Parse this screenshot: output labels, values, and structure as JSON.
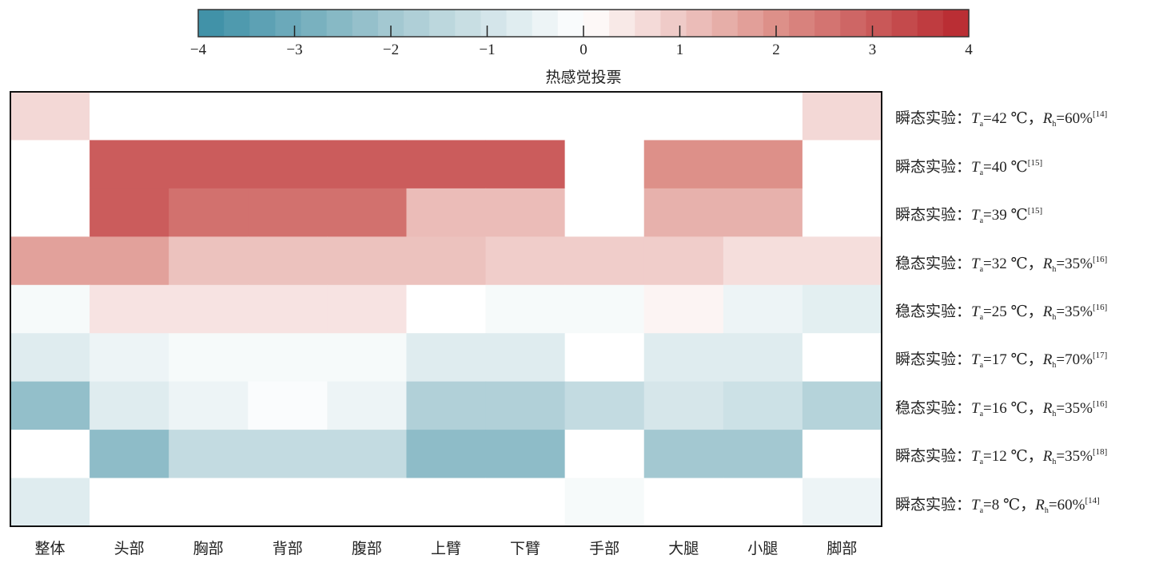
{
  "chart_data": {
    "type": "heatmap",
    "colorbar": {
      "title": "热感觉投票",
      "range": [
        -4,
        4
      ],
      "ticks": [
        -4,
        -3,
        -2,
        -1,
        0,
        1,
        2,
        3,
        4
      ],
      "tick_labels": [
        "−4",
        "−3",
        "−2",
        "−1",
        "0",
        "1",
        "2",
        "3",
        "4"
      ],
      "steps": 30,
      "colors": {
        "neg": "#3a8ea5",
        "neg_mid": "#a3c8d1",
        "zero": "#ffffff",
        "pos_mid": "#dd9089",
        "pos": "#b8272e"
      }
    },
    "columns": [
      "整体",
      "头部",
      "胸部",
      "背部",
      "腹部",
      "上臂",
      "下臂",
      "手部",
      "大腿",
      "小腿",
      "脚部"
    ],
    "rows": [
      {
        "prefix": "瞬态实验：",
        "t": "=42 ℃",
        "rh": "=60%",
        "ref": "[14]"
      },
      {
        "prefix": "瞬态实验：",
        "t": "=40 ℃",
        "rh": null,
        "ref": "[15]"
      },
      {
        "prefix": "瞬态实验：",
        "t": "=39 ℃",
        "rh": null,
        "ref": "[15]"
      },
      {
        "prefix": "稳态实验：",
        "t": "=32 ℃",
        "rh": "=35%",
        "ref": "[16]"
      },
      {
        "prefix": "稳态实验：",
        "t": "=25 ℃",
        "rh": "=35%",
        "ref": "[16]"
      },
      {
        "prefix": "瞬态实验：",
        "t": "=17 ℃",
        "rh": "=70%",
        "ref": "[17]"
      },
      {
        "prefix": "稳态实验：",
        "t": "=16 ℃",
        "rh": "=35%",
        "ref": "[16]"
      },
      {
        "prefix": "瞬态实验：",
        "t": "=12 ℃",
        "rh": "=35%",
        "ref": "[18]"
      },
      {
        "prefix": "瞬态实验：",
        "t": "=8 ℃",
        "rh": "=60%",
        "ref": "[14]"
      }
    ],
    "symbols": {
      "t": "T",
      "t_sub": "a",
      "rh": "R",
      "rh_sub": "h",
      "sep": "，"
    },
    "values": [
      [
        0.7,
        0,
        0,
        0,
        0,
        0,
        0,
        0,
        0,
        0,
        0.7
      ],
      [
        0,
        3.0,
        3.0,
        3.0,
        3.0,
        3.0,
        3.0,
        0,
        2.0,
        2.0,
        0
      ],
      [
        0,
        3.0,
        2.6,
        2.6,
        2.6,
        1.2,
        1.2,
        0,
        1.4,
        1.4,
        0
      ],
      [
        1.7,
        1.7,
        1.1,
        1.1,
        1.1,
        1.1,
        0.9,
        0.9,
        0.9,
        0.6,
        0.6
      ],
      [
        -0.2,
        0.5,
        0.5,
        0.5,
        0.5,
        0,
        -0.2,
        -0.2,
        0.2,
        -0.4,
        -0.6
      ],
      [
        -0.7,
        -0.4,
        -0.2,
        -0.2,
        -0.2,
        -0.7,
        -0.7,
        0,
        -0.7,
        -0.7,
        0
      ],
      [
        -2.3,
        -0.7,
        -0.4,
        -0.1,
        -0.4,
        -1.7,
        -1.7,
        -1.3,
        -0.9,
        -1.1,
        -1.6
      ],
      [
        0,
        -2.4,
        -1.3,
        -1.3,
        -1.3,
        -2.4,
        -2.4,
        0,
        -2.0,
        -2.0,
        0
      ],
      [
        -0.7,
        0,
        0,
        0,
        0,
        0,
        0,
        -0.2,
        0,
        0,
        -0.4
      ]
    ]
  }
}
